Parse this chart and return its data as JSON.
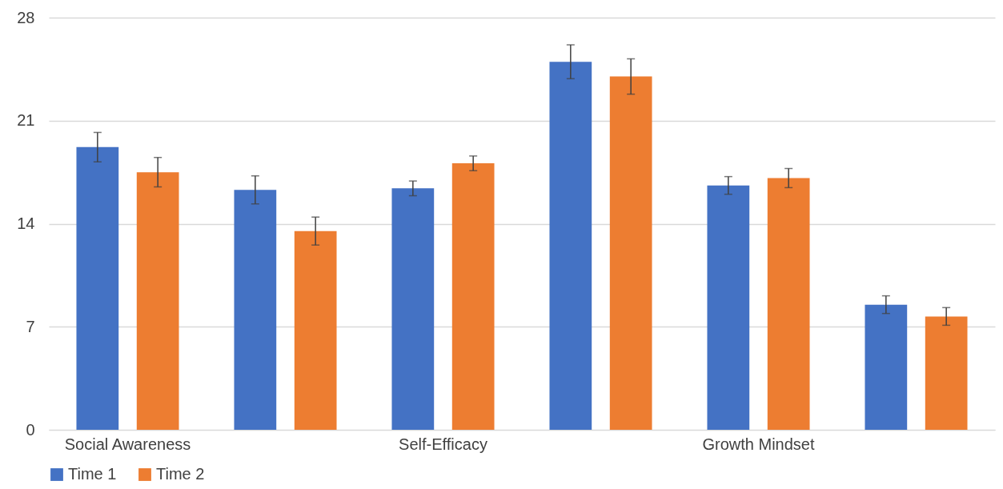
{
  "chart_data": {
    "type": "bar",
    "categories": [
      "Social Awareness",
      null,
      "Self-Efficacy",
      null,
      "Growth Mindset",
      null
    ],
    "series": [
      {
        "name": "Time 1",
        "color": "#4472c4",
        "values": [
          19.2,
          16.3,
          16.4,
          25.0,
          16.6,
          8.5
        ],
        "errors": [
          1.0,
          0.95,
          0.5,
          1.15,
          0.6,
          0.6
        ]
      },
      {
        "name": "Time 2",
        "color": "#ed7d31",
        "values": [
          17.5,
          13.5,
          18.1,
          24.0,
          17.1,
          7.7
        ],
        "errors": [
          1.0,
          0.95,
          0.5,
          1.2,
          0.65,
          0.6
        ]
      }
    ],
    "ylim": [
      0,
      28
    ],
    "yticks": [
      0,
      7,
      14,
      21,
      28
    ],
    "grid": "y",
    "legend": "bottom"
  }
}
